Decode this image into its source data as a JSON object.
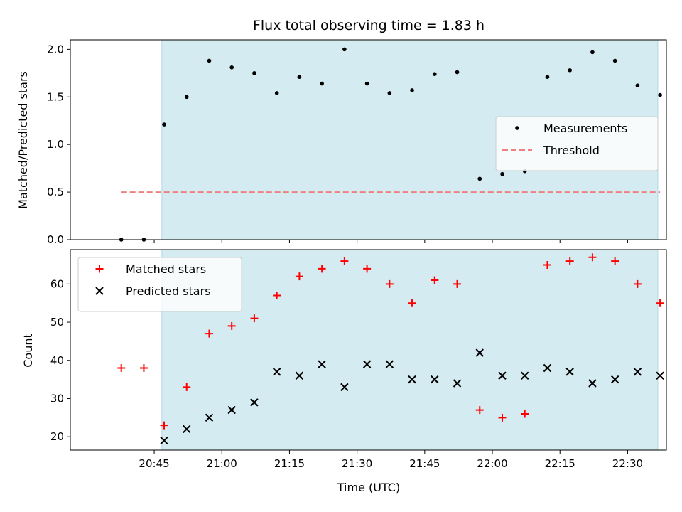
{
  "chart_data": {
    "title": "Flux total observing time = 1.83 h",
    "xlabel": "Time (UTC)",
    "x_ticks": [
      "20:45",
      "21:00",
      "21:15",
      "21:30",
      "21:45",
      "22:00",
      "22:15",
      "22:30"
    ],
    "x_tick_minutes": [
      1245,
      1260,
      1275,
      1290,
      1305,
      1320,
      1335,
      1350
    ],
    "xlim_minutes": [
      1226.4,
      1358.6
    ],
    "observing_window_minutes": [
      1246.7,
      1356.7
    ],
    "observing_window_color": "#d4ebf1",
    "times_minutes": [
      1237.7,
      1242.7,
      1247.2,
      1252.2,
      1257.2,
      1262.2,
      1267.2,
      1272.2,
      1277.2,
      1282.2,
      1287.2,
      1292.2,
      1297.2,
      1302.2,
      1307.2,
      1312.2,
      1317.2,
      1322.2,
      1327.2,
      1332.2,
      1337.2,
      1342.2,
      1347.2,
      1352.2,
      1357.2
    ],
    "panels": [
      {
        "type": "scatter",
        "ylabel": "Matched/Predicted stars",
        "ylim": [
          0,
          2.1
        ],
        "y_ticks": [
          "0.0",
          "0.5",
          "1.0",
          "1.5",
          "2.0"
        ],
        "y_tick_values": [
          0,
          0.5,
          1.0,
          1.5,
          2.0
        ],
        "legend_position": "center-right",
        "series": [
          {
            "name": "Measurements",
            "marker": "dot",
            "color": "#000000",
            "values": [
              0.0,
              0.0,
              1.21,
              1.5,
              1.88,
              1.81,
              1.75,
              1.54,
              1.71,
              1.64,
              2.0,
              1.64,
              1.54,
              1.57,
              1.74,
              1.76,
              0.64,
              0.69,
              0.72,
              1.71,
              1.78,
              1.97,
              1.88,
              1.62,
              1.52
            ]
          }
        ],
        "threshold": {
          "name": "Threshold",
          "value": 0.5,
          "color": "#f08080",
          "x_range_minutes": [
            1237.7,
            1357.2
          ]
        }
      },
      {
        "type": "scatter",
        "ylabel": "Count",
        "ylim": [
          16.5,
          69
        ],
        "y_ticks": [
          "20",
          "30",
          "40",
          "50",
          "60"
        ],
        "y_tick_values": [
          20,
          30,
          40,
          50,
          60
        ],
        "legend_position": "top-left",
        "series": [
          {
            "name": "Matched stars",
            "marker": "plus",
            "color": "#ff0000",
            "values": [
              38,
              38,
              23,
              33,
              47,
              49,
              51,
              57,
              62,
              64,
              66,
              64,
              60,
              55,
              61,
              60,
              27,
              25,
              26,
              65,
              66,
              67,
              66,
              60,
              55
            ]
          },
          {
            "name": "Predicted stars",
            "marker": "x",
            "color": "#000000",
            "values": [
              null,
              null,
              19,
              22,
              25,
              27,
              29,
              37,
              36,
              39,
              33,
              39,
              39,
              35,
              35,
              34,
              42,
              36,
              36,
              38,
              37,
              34,
              35,
              37,
              36
            ]
          }
        ]
      }
    ]
  }
}
